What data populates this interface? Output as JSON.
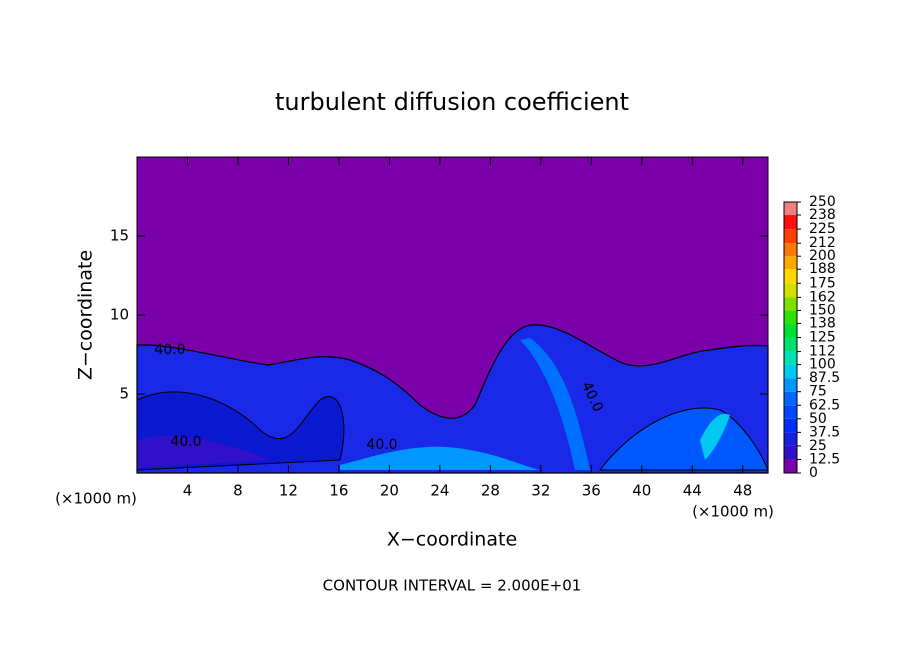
{
  "chart_data": {
    "type": "field",
    "title": "turbulent diffusion coefficient",
    "xlabel": "X−coordinate",
    "ylabel": "Z−coordinate",
    "x_unit": "(×1000 m)",
    "footnote": "CONTOUR INTERVAL = 2.000E+01",
    "xlim": [
      0,
      50
    ],
    "ylim": [
      0,
      20
    ],
    "xticks": [
      4,
      8,
      12,
      16,
      20,
      24,
      28,
      32,
      36,
      40,
      44,
      48
    ],
    "yticks": [
      5,
      10,
      15
    ],
    "contour_labels": [
      "40.0",
      "40.0",
      "40.0",
      "40.0"
    ],
    "colorbar": {
      "ticks": [
        0,
        12.5,
        25,
        37.5,
        50,
        62.5,
        75,
        87.5,
        100,
        112,
        125,
        138,
        150,
        162,
        175,
        188,
        200,
        212,
        225,
        238,
        250
      ],
      "colors": [
        "#7a00aa",
        "#3010c8",
        "#1820e0",
        "#0030f8",
        "#0048ff",
        "#0068ff",
        "#0098ff",
        "#00c8f0",
        "#00e0b0",
        "#00e070",
        "#00e030",
        "#30e000",
        "#80e000",
        "#d0e000",
        "#ffd800",
        "#ffa800",
        "#ff7800",
        "#ff4000",
        "#ff1010",
        "#f08080"
      ]
    }
  }
}
